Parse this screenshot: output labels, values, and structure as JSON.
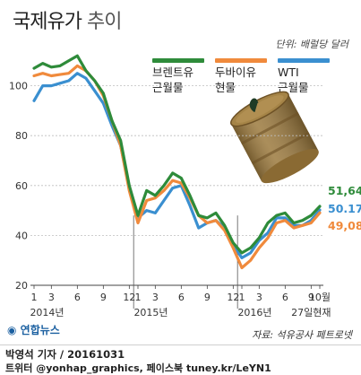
{
  "header": {
    "title_bold": "국제유가",
    "title_light": "추이",
    "unit": "단위: 배럴당 달러"
  },
  "legend": [
    {
      "line1": "브렌트유",
      "line2": "근월물",
      "color": "#2e8b3a"
    },
    {
      "line1": "두바이유",
      "line2": "현물",
      "color": "#f08a3c"
    },
    {
      "line1": "WTI",
      "line2": "근월물",
      "color": "#3a8fd0"
    }
  ],
  "chart_data": {
    "type": "line",
    "ylim": [
      20,
      120
    ],
    "y_ticks": [
      20,
      40,
      60,
      80,
      100
    ],
    "x_ticks": [
      {
        "label": "1",
        "i": 0
      },
      {
        "label": "3",
        "i": 2
      },
      {
        "label": "6",
        "i": 5
      },
      {
        "label": "9",
        "i": 8
      },
      {
        "label": "12",
        "i": 11
      },
      {
        "label": "1",
        "i": 12
      },
      {
        "label": "3",
        "i": 14
      },
      {
        "label": "6",
        "i": 17
      },
      {
        "label": "9",
        "i": 20
      },
      {
        "label": "12",
        "i": 23
      },
      {
        "label": "1",
        "i": 24
      },
      {
        "label": "3",
        "i": 26
      },
      {
        "label": "6",
        "i": 29
      },
      {
        "label": "9",
        "i": 32
      },
      {
        "label": "10월",
        "i": 33
      }
    ],
    "year_labels": [
      {
        "label": "2014년",
        "i": 1.5
      },
      {
        "label": "2015년",
        "i": 13.5
      },
      {
        "label": "2016년",
        "i": 25.5
      },
      {
        "label": "27일현재",
        "i": 32
      }
    ],
    "series": [
      {
        "name": "브렌트유 근월물",
        "color": "#2e8b3a",
        "values": [
          107,
          109,
          107.5,
          108,
          110,
          112,
          106,
          102,
          97,
          86,
          78,
          60,
          48,
          58,
          56,
          60,
          65,
          63,
          56,
          48,
          47,
          49,
          44,
          37,
          33,
          35,
          39,
          45,
          48,
          49,
          45,
          46,
          48,
          51.64
        ]
      },
      {
        "name": "두바이유 현물",
        "color": "#f08a3c",
        "values": [
          104,
          105,
          104,
          104.5,
          105,
          108,
          106,
          102,
          96,
          86,
          76,
          58,
          45,
          54,
          55,
          58,
          62,
          61,
          55,
          48,
          45,
          46,
          42,
          35,
          27,
          30,
          35,
          39,
          45,
          46,
          43,
          44,
          45,
          49.08
        ]
      },
      {
        "name": "WTI 근월물",
        "color": "#3a8fd0",
        "values": [
          94,
          100,
          100,
          101,
          102,
          105,
          103,
          98,
          93,
          84,
          76,
          59,
          47,
          50,
          49,
          54,
          59,
          60,
          52,
          43,
          45,
          46,
          43,
          36,
          31,
          33,
          38,
          41,
          47,
          47,
          44,
          44,
          46,
          50.17
        ]
      }
    ],
    "end_labels": [
      {
        "text": "51,64",
        "color": "#2e8b3a"
      },
      {
        "text": "50.17",
        "color": "#3a8fd0"
      },
      {
        "text": "49,08",
        "color": "#f08a3c"
      }
    ]
  },
  "footer": {
    "source": "자료: 석유공사 페트로넷",
    "agency": "연합뉴스",
    "credit": "박영석 기자 / 20161031",
    "social": "트위터 @yonhap_graphics, 페이스북 tuney.kr/LeYN1"
  }
}
